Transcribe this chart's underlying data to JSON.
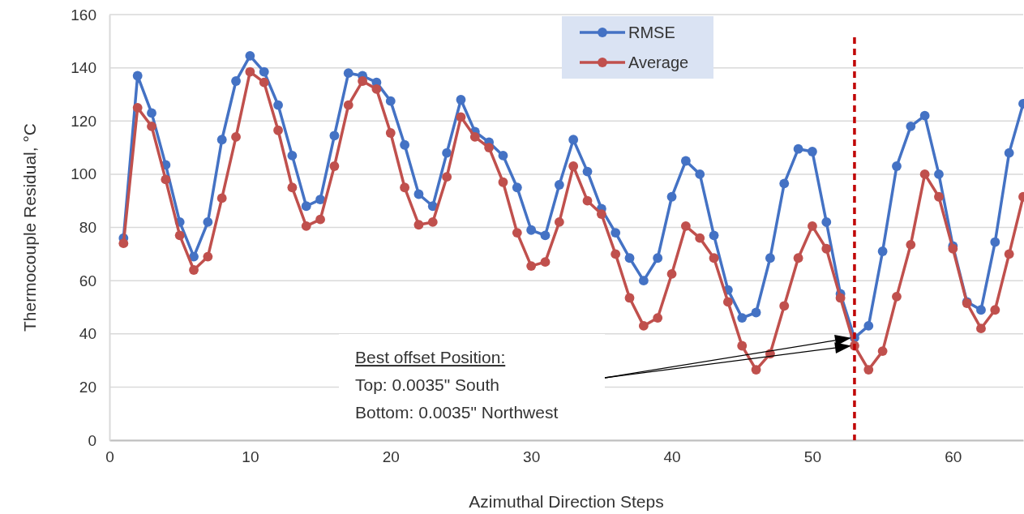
{
  "chart_data": {
    "type": "line",
    "xlabel": "Azimuthal Direction Steps",
    "ylabel": "Thermocouple Residual, °C",
    "x": [
      1,
      2,
      3,
      4,
      5,
      6,
      7,
      8,
      9,
      10,
      11,
      12,
      13,
      14,
      15,
      16,
      17,
      18,
      19,
      20,
      21,
      22,
      23,
      24,
      25,
      26,
      27,
      28,
      29,
      30,
      31,
      32,
      33,
      34,
      35,
      36,
      37,
      38,
      39,
      40,
      41,
      42,
      43,
      44,
      45,
      46,
      47,
      48,
      49,
      50,
      51,
      52,
      53,
      54,
      55,
      56,
      57,
      58,
      59,
      60,
      61,
      62,
      63,
      64,
      65
    ],
    "series": [
      {
        "name": "RMSE",
        "color": "#4472c4",
        "values": [
          76,
          137,
          123,
          103.5,
          82,
          69,
          82,
          113,
          135,
          144.5,
          138.5,
          126,
          107,
          88,
          90.5,
          114.5,
          138,
          137,
          134.5,
          127.5,
          111,
          92.5,
          88,
          108,
          128,
          116,
          112,
          107,
          95,
          79,
          77,
          96,
          113,
          101,
          87,
          78,
          68.5,
          60,
          68.5,
          91.5,
          105,
          100,
          77,
          56.5,
          46,
          48,
          68.5,
          96.5,
          109.5,
          108.5,
          82,
          55,
          38.5,
          43,
          71,
          103,
          118,
          122,
          100,
          73,
          52,
          49,
          74.5,
          108,
          126.5
        ]
      },
      {
        "name": "Average",
        "color": "#c0504d",
        "values": [
          74,
          125,
          118,
          98,
          77,
          64,
          69,
          91,
          114,
          138.5,
          134.5,
          116.5,
          95,
          80.5,
          83,
          103,
          126,
          135,
          132,
          115.5,
          95,
          81,
          82,
          99,
          121.5,
          114,
          110,
          97,
          78,
          65.5,
          67,
          82,
          103,
          90,
          85,
          70,
          53.5,
          43,
          46,
          62.5,
          80.5,
          76,
          68.5,
          52,
          35.5,
          26.5,
          32.5,
          50.5,
          68.5,
          80.5,
          72,
          53.5,
          35.5,
          26.5,
          33.5,
          54,
          73.5,
          100,
          91.5,
          72,
          51.5,
          42,
          49,
          70,
          91.5
        ]
      }
    ],
    "xlim": [
      0,
      65
    ],
    "xticks": [
      0,
      10,
      20,
      30,
      40,
      50,
      60
    ],
    "ylim": [
      0,
      160
    ],
    "yticks": [
      0,
      20,
      40,
      60,
      80,
      100,
      120,
      140,
      160
    ],
    "grid": "y",
    "marker": "circle",
    "line_style": "solid",
    "legend": "top",
    "ref_lines": [
      {
        "axis": "x",
        "value": 53,
        "color": "#c00000",
        "line_style": "dashed"
      }
    ],
    "annotations": [
      "Best offset Position:",
      "Top: 0.0035\" South",
      "Bottom: 0.0035\" Northwest"
    ]
  }
}
